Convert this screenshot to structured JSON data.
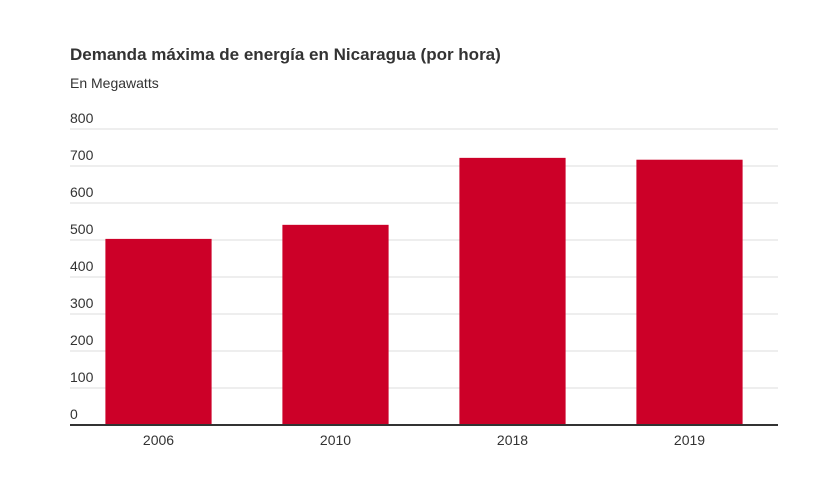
{
  "chart_data": {
    "type": "bar",
    "title": "Demanda máxima de energía en Nicaragua (por hora)",
    "subtitle": "En Megawatts",
    "xlabel": "",
    "ylabel": "",
    "categories": [
      "2006",
      "2010",
      "2018",
      "2019"
    ],
    "values": [
      503,
      541,
      722,
      717
    ],
    "ylim": [
      0,
      800
    ],
    "yticks": [
      0,
      100,
      200,
      300,
      400,
      500,
      600,
      700,
      800
    ],
    "grid": true,
    "legend": "none",
    "colors": {
      "bar": "#cc0028",
      "grid": "#dddddd",
      "axis": "#333333",
      "text": "#333333"
    }
  }
}
